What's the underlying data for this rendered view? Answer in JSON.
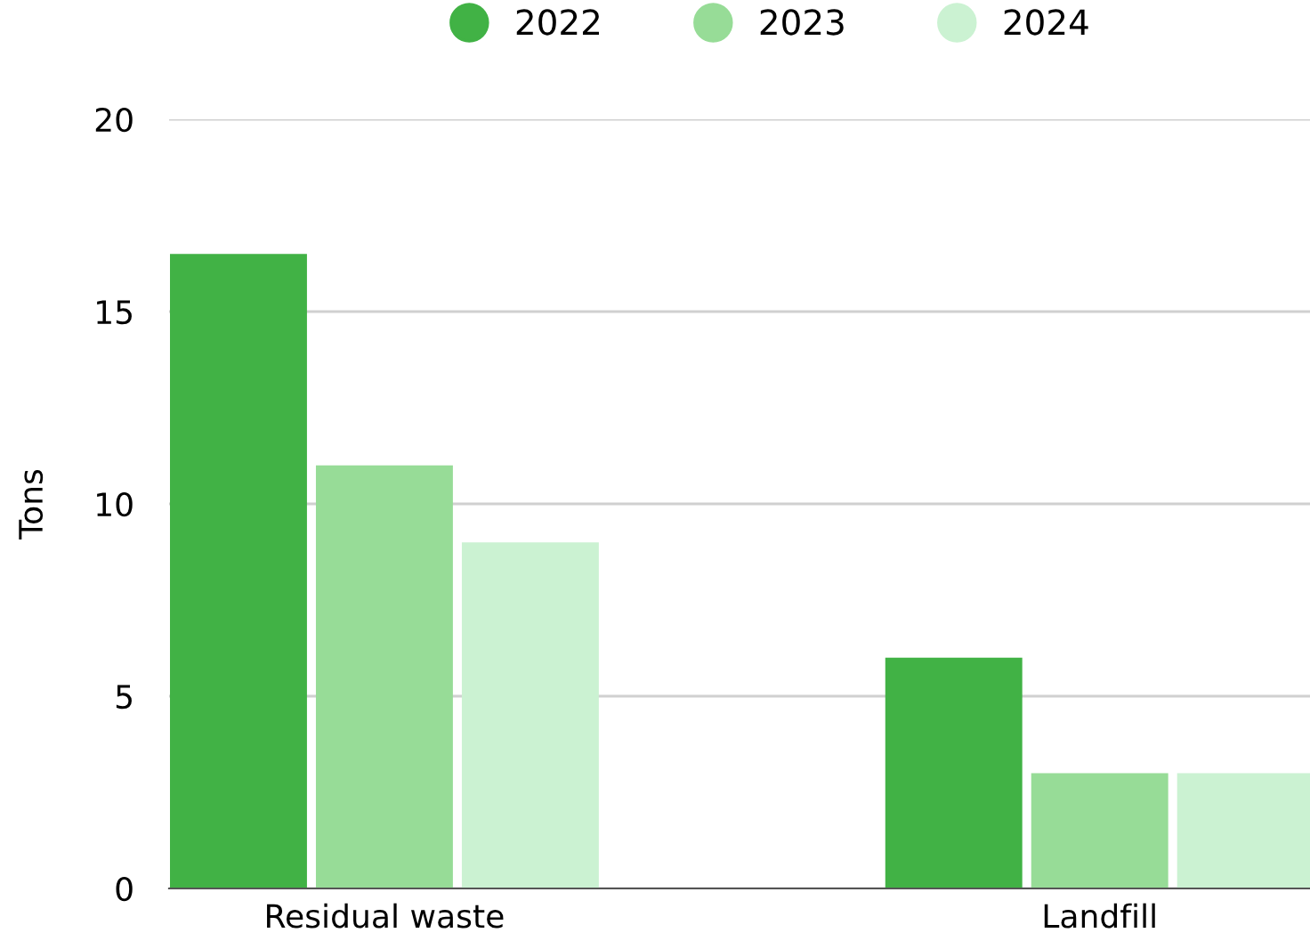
{
  "chart_data": {
    "type": "bar",
    "ylabel": "Tons",
    "categories": [
      "Residual waste",
      "Landfill"
    ],
    "series": [
      {
        "name": "2022",
        "color": "#41b245",
        "values": [
          16.5,
          6
        ]
      },
      {
        "name": "2023",
        "color": "#97dc97",
        "values": [
          11,
          3
        ]
      },
      {
        "name": "2024",
        "color": "#cbf2d2",
        "values": [
          9,
          3
        ]
      }
    ],
    "ylim": [
      0,
      20
    ],
    "yticks": [
      0,
      5,
      10,
      15,
      20
    ],
    "grid": "y",
    "legend": "top"
  }
}
